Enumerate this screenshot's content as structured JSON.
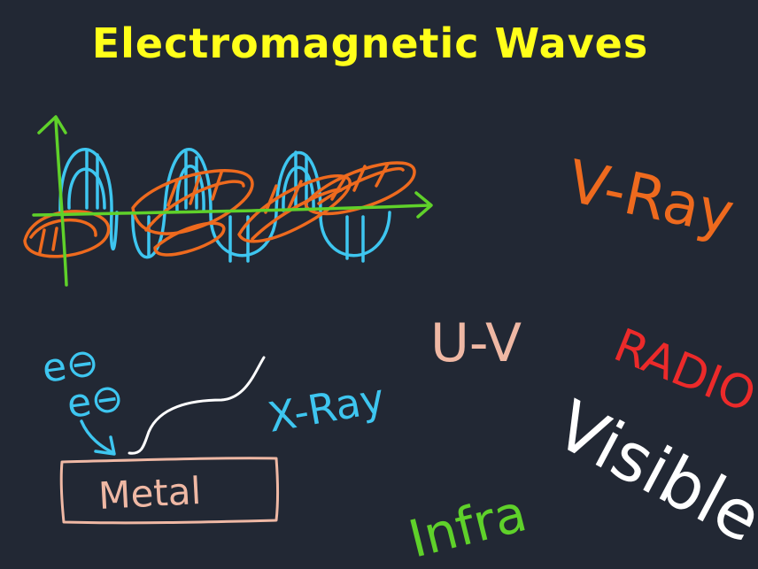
{
  "slide": {
    "title": "Electromagnetic Waves"
  },
  "labels": {
    "gamma_ray": "V-Ray",
    "uv": "U-V",
    "radio": "RADIO",
    "visible": "Visible",
    "infrared": "Infra",
    "x_ray": "X-Ray",
    "metal": "Metal",
    "electron": "e⊖"
  },
  "colors": {
    "background": "#222834",
    "title": "#ffff1a",
    "orange": "#ee6a1e",
    "light_blue": "#3ec6f0",
    "green": "#5fd12a",
    "pink": "#efb8a4",
    "red": "#ec2a2a",
    "white": "#ffffff"
  }
}
